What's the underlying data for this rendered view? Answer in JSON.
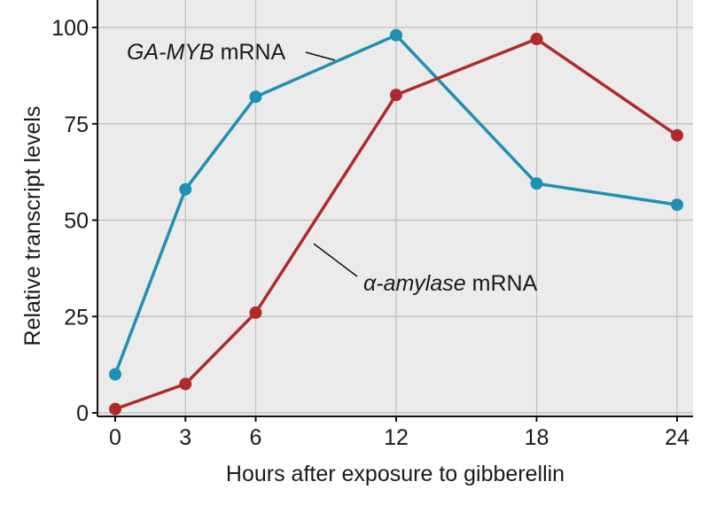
{
  "chart_data": {
    "type": "line",
    "x": [
      0,
      3,
      6,
      12,
      18,
      24
    ],
    "series": [
      {
        "name": "GA-MYB mRNA",
        "name_italic": "GA-MYB",
        "name_rest": " mRNA",
        "color": "#1e8fb5",
        "values": [
          10,
          58,
          82,
          98,
          59.5,
          54
        ]
      },
      {
        "name": "α-amylase mRNA",
        "name_italic": "α-amylase",
        "name_rest": " mRNA",
        "color": "#b02a2a",
        "values": [
          1,
          7.5,
          26,
          82.5,
          97,
          72
        ]
      }
    ],
    "xlabel": "Hours after exposure to gibberellin",
    "ylabel": "Relative transcript levels",
    "xticks": [
      0,
      3,
      6,
      12,
      18,
      24
    ],
    "yticks": [
      0,
      25,
      50,
      75,
      100
    ],
    "xlim": [
      0,
      24
    ],
    "ylim": [
      0,
      100
    ],
    "grid": true,
    "legend": "inline labels"
  }
}
